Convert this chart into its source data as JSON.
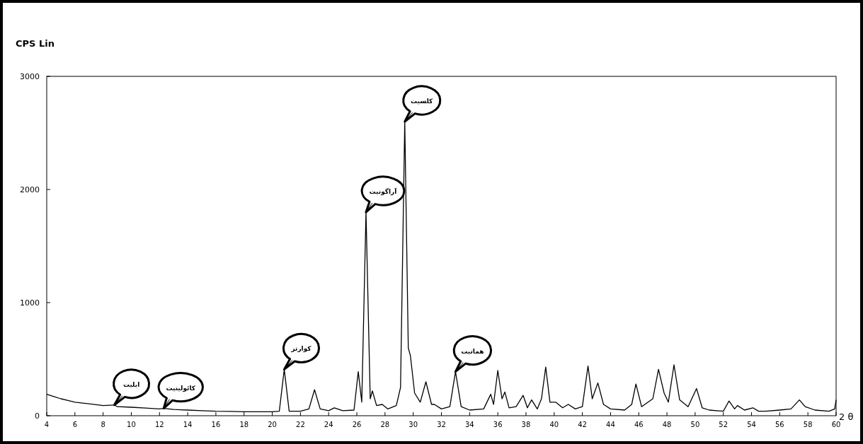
{
  "chart_data": {
    "type": "line",
    "ylabel": "CPS Lin",
    "xlabel": "2 θ",
    "xlim": [
      4,
      60
    ],
    "ylim": [
      0,
      3000
    ],
    "xticks": [
      4,
      6,
      8,
      10,
      12,
      14,
      16,
      18,
      20,
      22,
      24,
      26,
      28,
      30,
      32,
      34,
      36,
      38,
      40,
      42,
      44,
      46,
      48,
      50,
      52,
      54,
      56,
      58,
      60
    ],
    "yticks": [
      0,
      1000,
      2000,
      3000
    ],
    "grid": false,
    "series": [
      {
        "color": "#000000",
        "x": [
          4,
          4.5,
          5,
          5.5,
          6,
          7,
          8,
          8.8,
          9,
          10,
          11,
          12,
          12.3,
          13,
          14,
          15,
          16,
          17,
          18,
          19,
          20,
          20.5,
          20.85,
          21.2,
          22,
          22.6,
          23,
          23.4,
          24,
          24.4,
          25,
          25.8,
          26.1,
          26.35,
          26.65,
          26.95,
          27.1,
          27.4,
          27.8,
          28.2,
          28.8,
          29.1,
          29.4,
          29.65,
          29.8,
          30.1,
          30.5,
          30.9,
          31.3,
          31.5,
          32,
          32.6,
          33,
          33.4,
          34,
          35,
          35.5,
          35.7,
          36,
          36.3,
          36.5,
          36.8,
          37.3,
          37.8,
          38.1,
          38.4,
          38.8,
          39.1,
          39.4,
          39.7,
          40.1,
          40.6,
          41,
          41.5,
          42,
          42.4,
          42.7,
          43.1,
          43.5,
          44,
          45,
          45.5,
          45.8,
          46.2,
          47,
          47.4,
          47.8,
          48.1,
          48.5,
          48.9,
          49.5,
          50.1,
          50.5,
          51,
          52,
          52.4,
          52.8,
          53,
          53.5,
          54.1,
          54.5,
          55,
          56,
          56.8,
          57.4,
          57.8,
          58.5,
          59.5,
          59.9,
          60
        ],
        "values": [
          190,
          170,
          150,
          135,
          120,
          105,
          90,
          95,
          80,
          75,
          68,
          60,
          65,
          55,
          50,
          45,
          40,
          38,
          35,
          35,
          35,
          40,
          410,
          40,
          40,
          60,
          230,
          60,
          45,
          70,
          45,
          50,
          390,
          120,
          1800,
          150,
          220,
          90,
          100,
          60,
          90,
          250,
          2600,
          600,
          530,
          200,
          120,
          300,
          100,
          100,
          60,
          80,
          390,
          80,
          50,
          60,
          190,
          100,
          400,
          150,
          210,
          70,
          80,
          180,
          70,
          140,
          60,
          150,
          430,
          120,
          120,
          70,
          100,
          60,
          80,
          440,
          150,
          290,
          100,
          60,
          50,
          100,
          280,
          80,
          150,
          410,
          200,
          120,
          450,
          140,
          80,
          240,
          70,
          50,
          40,
          130,
          60,
          90,
          50,
          70,
          40,
          40,
          50,
          60,
          140,
          80,
          50,
          40,
          60,
          140
        ]
      }
    ],
    "annotations": [
      {
        "text": "ایلیت",
        "x": 8.8,
        "y": 95
      },
      {
        "text": "کائولینیت",
        "x": 12.3,
        "y": 65
      },
      {
        "text": "کوارتز",
        "x": 20.85,
        "y": 410
      },
      {
        "text": "آراگونیت",
        "x": 26.65,
        "y": 1800
      },
      {
        "text": "کلسیت",
        "x": 29.4,
        "y": 2600
      },
      {
        "text": "هماتیت",
        "x": 33,
        "y": 390
      }
    ]
  }
}
